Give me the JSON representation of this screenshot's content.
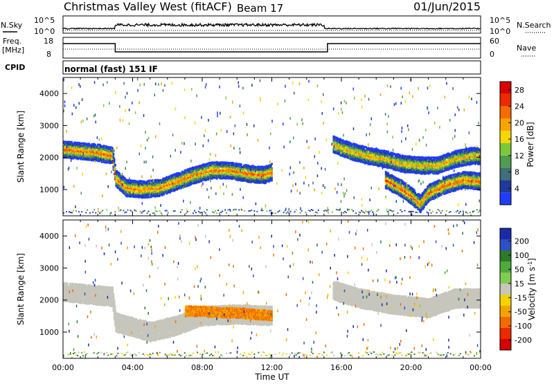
{
  "header": {
    "site": "Christmas Valley West (fitACF)",
    "beam": "Beam 17",
    "date": "01/Jun/2015"
  },
  "strips": {
    "nsky_label": "N.Sky",
    "nsky_ticks": [
      "10^5",
      "10^0"
    ],
    "nsearch_label": "N.Search",
    "nsearch_ticks": [
      "10^5",
      "10^0"
    ],
    "freq_label": "Freq.",
    "freq_unit": "[MHz]",
    "freq_ticks": [
      "18",
      "8"
    ],
    "nave_label": "Nave",
    "nave_ticks": [
      "60",
      "0"
    ],
    "cpid_label": "CPID",
    "cpid_value": "normal (fast) 151 IF"
  },
  "colors": {
    "scale_power": [
      "#1f3cff",
      "#1f3a9a",
      "#3f6f78",
      "#4f9b4f",
      "#7cc83a",
      "#f6d800",
      "#f8a400",
      "#f56b00",
      "#ee2a00",
      "#d80000"
    ],
    "scale_velocity": [
      "#1a2aa8",
      "#2f4fc8",
      "#2d7a2d",
      "#4faa3a",
      "#82cc52",
      "#c6c6bc",
      "#f2d200",
      "#f3a400",
      "#f36b00",
      "#ec2a00",
      "#d60000"
    ],
    "ground_scatter": "#c6c6bc"
  },
  "chart_data": [
    {
      "type": "heatmap",
      "title": "",
      "xlabel": "",
      "ylabel": "Slant Range [km]",
      "x_ticks": [
        "00:00",
        "04:00",
        "08:00",
        "12:00",
        "16:00",
        "20:00",
        "00:00"
      ],
      "xlim_hours": [
        0,
        24
      ],
      "y_ticks": [
        1000,
        2000,
        3000,
        4000
      ],
      "ylim_km": [
        180,
        4500
      ],
      "colorbar": {
        "label": "Power [dB]",
        "ticks": [
          4,
          8,
          12,
          16,
          20,
          24,
          28
        ],
        "range": [
          0,
          30
        ]
      },
      "echo_bands": [
        {
          "name_hint": "morning",
          "t": [
            0.0,
            1.0,
            2.0,
            2.8,
            3.0,
            3.6,
            4.5,
            5.5,
            6.5,
            7.5,
            8.5,
            9.5,
            10.5,
            11.5,
            12.0
          ],
          "r": [
            2250,
            2200,
            2150,
            2050,
            1350,
            1050,
            1000,
            1050,
            1250,
            1450,
            1600,
            1600,
            1500,
            1450,
            1550
          ],
          "peak_db": 27
        },
        {
          "name_hint": "gap_track",
          "t": [
            15.5,
            16.5,
            17.5,
            18.5,
            19.5,
            20.5,
            21.5,
            22.5,
            23.5,
            24.0
          ],
          "r": [
            2400,
            2200,
            2050,
            1950,
            1800,
            1750,
            1750,
            1950,
            2050,
            2050
          ],
          "peak_db": 24
        },
        {
          "name_hint": "evening_dip",
          "t": [
            18.5,
            19.5,
            20.0,
            20.5,
            21.0,
            22.0,
            23.0,
            24.0
          ],
          "r": [
            1300,
            1000,
            800,
            550,
            900,
            1150,
            1300,
            1250
          ],
          "peak_db": 28
        }
      ]
    },
    {
      "type": "heatmap",
      "title": "",
      "xlabel": "Time UT",
      "ylabel": "Slant Range [km]",
      "x_ticks": [
        "00:00",
        "04:00",
        "08:00",
        "12:00",
        "16:00",
        "20:00",
        "00:00"
      ],
      "xlim_hours": [
        0,
        24
      ],
      "y_ticks": [
        1000,
        2000,
        3000,
        4000
      ],
      "ylim_km": [
        180,
        4500
      ],
      "colorbar": {
        "label": "Velocity [m s^-1]",
        "ticks": [
          200,
          100,
          50,
          15,
          -15,
          -50,
          -100,
          -200
        ],
        "range": [
          -250,
          250
        ]
      },
      "echo_bands": [
        {
          "name_hint": "ground_scatter_morning",
          "t": [
            0.0,
            2.8,
            3.0,
            5.0,
            6.5,
            8.0,
            10.0,
            12.0
          ],
          "r": [
            2250,
            2100,
            1300,
            1000,
            1200,
            1500,
            1550,
            1500
          ],
          "velocity": 0
        },
        {
          "name_hint": "flow_west",
          "t": [
            7.0,
            8.0,
            9.0,
            10.0,
            11.0,
            12.0
          ],
          "r": [
            1650,
            1650,
            1600,
            1600,
            1550,
            1500
          ],
          "velocity": -150
        },
        {
          "name_hint": "ground_scatter_evening",
          "t": [
            15.5,
            17.0,
            19.0,
            21.0,
            22.5,
            24.0
          ],
          "r": [
            2300,
            2050,
            1850,
            1750,
            2050,
            2050
          ],
          "velocity": 0
        }
      ]
    }
  ],
  "x_axis_label": "Time UT"
}
